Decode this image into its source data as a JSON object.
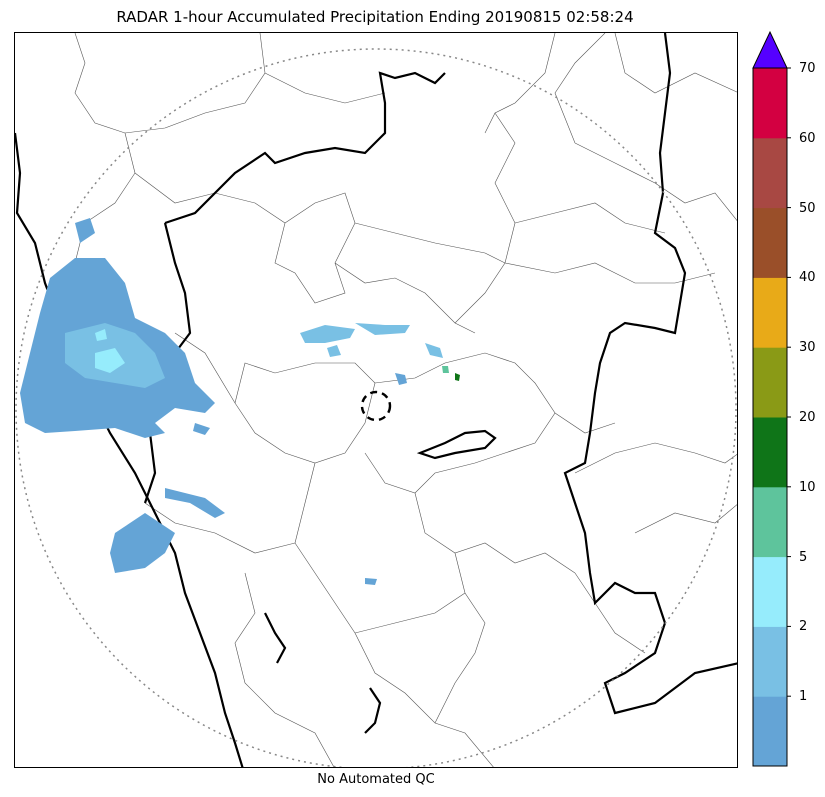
{
  "title": "RADAR 1-hour Accumulated Precipitation Ending 20190815 02:58:24",
  "subtitle": "No Automated QC",
  "colorbar": {
    "extend": "max",
    "extend_color": "#5500ff",
    "bins": [
      {
        "from": 0,
        "to": 1,
        "color": "#64a4d6"
      },
      {
        "from": 1,
        "to": 2,
        "color": "#79c0e4"
      },
      {
        "from": 2,
        "to": 5,
        "color": "#96ecfc"
      },
      {
        "from": 5,
        "to": 10,
        "color": "#5ec49c"
      },
      {
        "from": 10,
        "to": 20,
        "color": "#0f7518"
      },
      {
        "from": 20,
        "to": 30,
        "color": "#8a9a16"
      },
      {
        "from": 30,
        "to": 40,
        "color": "#e8aa18"
      },
      {
        "from": 40,
        "to": 50,
        "color": "#9a4f29"
      },
      {
        "from": 50,
        "to": 60,
        "color": "#a84843"
      },
      {
        "from": 60,
        "to": 70,
        "color": "#d30041"
      }
    ],
    "tick_labels": [
      "1",
      "2",
      "5",
      "10",
      "20",
      "30",
      "40",
      "50",
      "60",
      "70"
    ]
  },
  "map": {
    "range_ring": "dotted",
    "radar_site_marker": "dashed-circle"
  }
}
